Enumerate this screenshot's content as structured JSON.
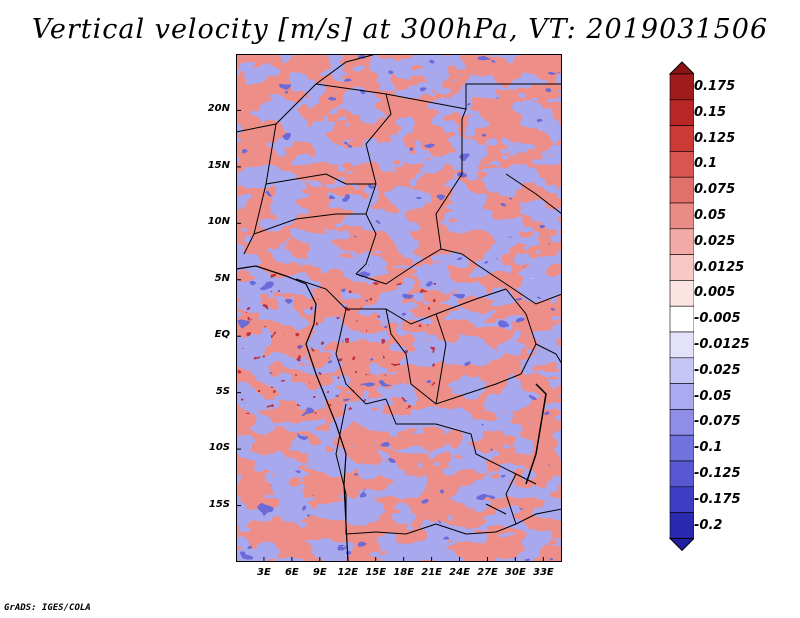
{
  "title": "Vertical velocity [m/s] at 300hPa, VT: 2019031506",
  "credit": "GrADS: IGES/COLA",
  "map": {
    "lon_range": [
      0,
      35
    ],
    "lat_range": [
      -20,
      25
    ],
    "lat_ticks": [
      {
        "value": 20,
        "label": "20N"
      },
      {
        "value": 15,
        "label": "15N"
      },
      {
        "value": 10,
        "label": "10N"
      },
      {
        "value": 5,
        "label": "5N"
      },
      {
        "value": 0,
        "label": "EQ"
      },
      {
        "value": -5,
        "label": "5S"
      },
      {
        "value": -10,
        "label": "10S"
      },
      {
        "value": -15,
        "label": "15S"
      }
    ],
    "lon_ticks": [
      {
        "value": 3,
        "label": "3E"
      },
      {
        "value": 6,
        "label": "6E"
      },
      {
        "value": 9,
        "label": "9E"
      },
      {
        "value": 12,
        "label": "12E"
      },
      {
        "value": 15,
        "label": "15E"
      },
      {
        "value": 18,
        "label": "18E"
      },
      {
        "value": 21,
        "label": "21E"
      },
      {
        "value": 24,
        "label": "24E"
      },
      {
        "value": 27,
        "label": "27E"
      },
      {
        "value": 30,
        "label": "30E"
      },
      {
        "value": 33,
        "label": "33E"
      }
    ]
  },
  "colorbar": {
    "levels": [
      {
        "label": "0.175",
        "color": "#a01c1c"
      },
      {
        "label": "0.15",
        "color": "#b82626"
      },
      {
        "label": "0.125",
        "color": "#cc3a36"
      },
      {
        "label": "0.1",
        "color": "#d95550"
      },
      {
        "label": "0.075",
        "color": "#e2706a"
      },
      {
        "label": "0.05",
        "color": "#ea8c86"
      },
      {
        "label": "0.025",
        "color": "#f2aaa6"
      },
      {
        "label": "0.0125",
        "color": "#f7c8c5"
      },
      {
        "label": "0.005",
        "color": "#fbe4e2"
      },
      {
        "label": "-0.005",
        "color": "#ffffff"
      },
      {
        "label": "-0.0125",
        "color": "#e2e2fb"
      },
      {
        "label": "-0.025",
        "color": "#c6c6f6"
      },
      {
        "label": "-0.05",
        "color": "#aaaaf0"
      },
      {
        "label": "-0.075",
        "color": "#8e8ee8"
      },
      {
        "label": "-0.1",
        "color": "#7272de"
      },
      {
        "label": "-0.125",
        "color": "#5858d2"
      },
      {
        "label": "-0.175",
        "color": "#3e3ec4"
      },
      {
        "label": "-0.2",
        "color": "#2a2ab0"
      }
    ],
    "over_color": "#8a1414",
    "under_color": "#2020a0"
  }
}
